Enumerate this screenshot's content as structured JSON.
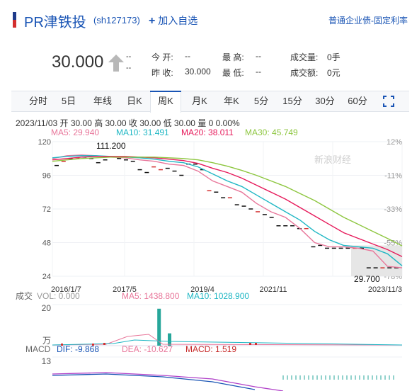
{
  "header": {
    "stock_name": "PR津铁投",
    "stock_code": "(sh127173)",
    "add_favorite": "加入自选",
    "bond_type": "普通企业债-固定利率"
  },
  "quote": {
    "price": "30.000",
    "change": "--",
    "change_pct": "--",
    "open_label": "今  开:",
    "open": "--",
    "prev_close_label": "昨  收:",
    "prev_close": "30.000",
    "high_label": "最  高:",
    "high": "--",
    "low_label": "最  低:",
    "low": "--",
    "volume_label": "成交量:",
    "volume": "0手",
    "amount_label": "成交额:",
    "amount": "0元"
  },
  "tabs": [
    "分时",
    "5日",
    "年线",
    "日K",
    "周K",
    "月K",
    "年K",
    "5分",
    "15分",
    "30分",
    "60分"
  ],
  "active_tab": "周K",
  "info_line": "2023/11/03 开 30.00 高 30.00 收 30.00 低 30.00 量 0 0.00%",
  "ma": {
    "ma5": "MA5: 29.940",
    "ma10": "MA10: 31.491",
    "ma20": "MA20: 38.011",
    "ma30": "MA30: 45.749"
  },
  "colors": {
    "ma5": "#e8769a",
    "ma10": "#1fb7c4",
    "ma20": "#e6195a",
    "ma30": "#8dc63f",
    "up": "#d32f2f",
    "down": "#111111",
    "vol_up": "#26a69a",
    "link": "#1a55b5"
  },
  "chart_data": {
    "type": "line",
    "y_ticks_left": [
      "120",
      "96",
      "72",
      "48",
      "24"
    ],
    "y_ticks_right": [
      "12%",
      "-11%",
      "-33%",
      "-55%",
      "-78%"
    ],
    "x_ticks": [
      "2016/1/7",
      "2017/5",
      "2019/4",
      "2021/11",
      "2023/11/3"
    ],
    "max_label": "111.200",
    "min_label": "29.700",
    "ylim": [
      24,
      120
    ],
    "series": [
      {
        "name": "MA5",
        "values": [
          108,
          110,
          110.5,
          110,
          109,
          108.5,
          107,
          106,
          104,
          103,
          99,
          92,
          88,
          84,
          76,
          70,
          66,
          58,
          48,
          45,
          45,
          44,
          42,
          31,
          30
        ]
      },
      {
        "name": "MA10",
        "values": [
          108.5,
          109.5,
          110,
          110,
          109.5,
          109,
          108.5,
          107.5,
          106,
          105,
          102,
          97,
          92,
          88,
          82,
          76,
          70,
          64,
          56,
          50,
          46,
          45,
          44,
          40,
          31.5
        ]
      },
      {
        "name": "MA20",
        "values": [
          107,
          108,
          109,
          109.5,
          109.5,
          109.5,
          109,
          108.5,
          107.5,
          106.5,
          104.5,
          101,
          98,
          94,
          89,
          84,
          79,
          73,
          67,
          61,
          55,
          51,
          47,
          43,
          38
        ]
      },
      {
        "name": "MA30",
        "values": [
          106,
          107,
          108,
          108.5,
          109,
          109,
          109,
          109,
          108.5,
          108,
          107,
          105,
          102.5,
          99.5,
          96,
          92,
          88,
          83,
          78,
          72,
          66,
          61,
          56,
          51,
          45.7
        ]
      }
    ],
    "candles": [
      103,
      106,
      108,
      108.5,
      109,
      108,
      105,
      107,
      109,
      108,
      107,
      106,
      100,
      98,
      102,
      100,
      101,
      99,
      96,
      104,
      104,
      100,
      85,
      84,
      80,
      80,
      75,
      74,
      72,
      70,
      68,
      66,
      60,
      60,
      60,
      58,
      58,
      45,
      46,
      44,
      44,
      44,
      44,
      44,
      44,
      30,
      30,
      30,
      30,
      30
    ],
    "volume": {
      "label": "成交",
      "vol": "VOL: 0.000",
      "ma5": "MA5: 1438.800",
      "ma10": "MA10: 1028.900",
      "ticks": [
        "20",
        "万"
      ],
      "bars": [
        {
          "at": 0.3,
          "value": 18
        },
        {
          "at": 0.33,
          "value": 6
        }
      ]
    },
    "macd": {
      "label": "MACD",
      "dif": "DIF: -9.868",
      "dea": "DEA: -10.627",
      "macd": "MACD: 1.519",
      "tick": "13"
    }
  },
  "watermark": "新浪财经"
}
